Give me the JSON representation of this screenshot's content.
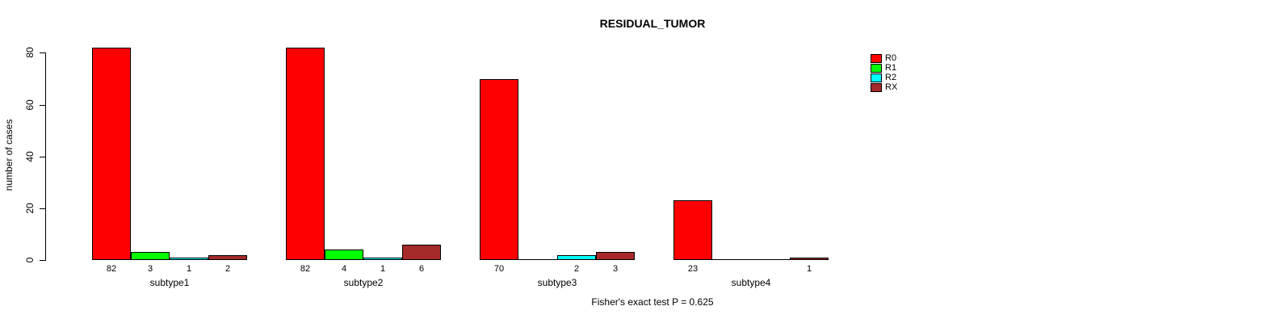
{
  "chart_data": {
    "type": "bar",
    "title": "RESIDUAL_TUMOR",
    "ylabel": "number of cases",
    "xlabel": "",
    "ylim": [
      0,
      80
    ],
    "yticks": [
      0,
      20,
      40,
      60,
      80
    ],
    "grid": false,
    "legend_position": "top-right",
    "categories": [
      "subtype1",
      "subtype2",
      "subtype3",
      "subtype4"
    ],
    "series": [
      {
        "name": "R0",
        "color": "#ff0000",
        "values": [
          82,
          82,
          70,
          23
        ]
      },
      {
        "name": "R1",
        "color": "#00ff00",
        "values": [
          3,
          4,
          0,
          0
        ]
      },
      {
        "name": "R2",
        "color": "#00ffff",
        "values": [
          1,
          1,
          2,
          0
        ]
      },
      {
        "name": "RX",
        "color": "#a52a2a",
        "values": [
          2,
          6,
          3,
          1
        ]
      }
    ],
    "bar_value_labels": "shown under each nonzero bar",
    "annotation": "Fisher's exact test P = 0.625"
  },
  "colors": {
    "background": "#ffffff",
    "bar_border": "#000000",
    "text": "#000000"
  }
}
